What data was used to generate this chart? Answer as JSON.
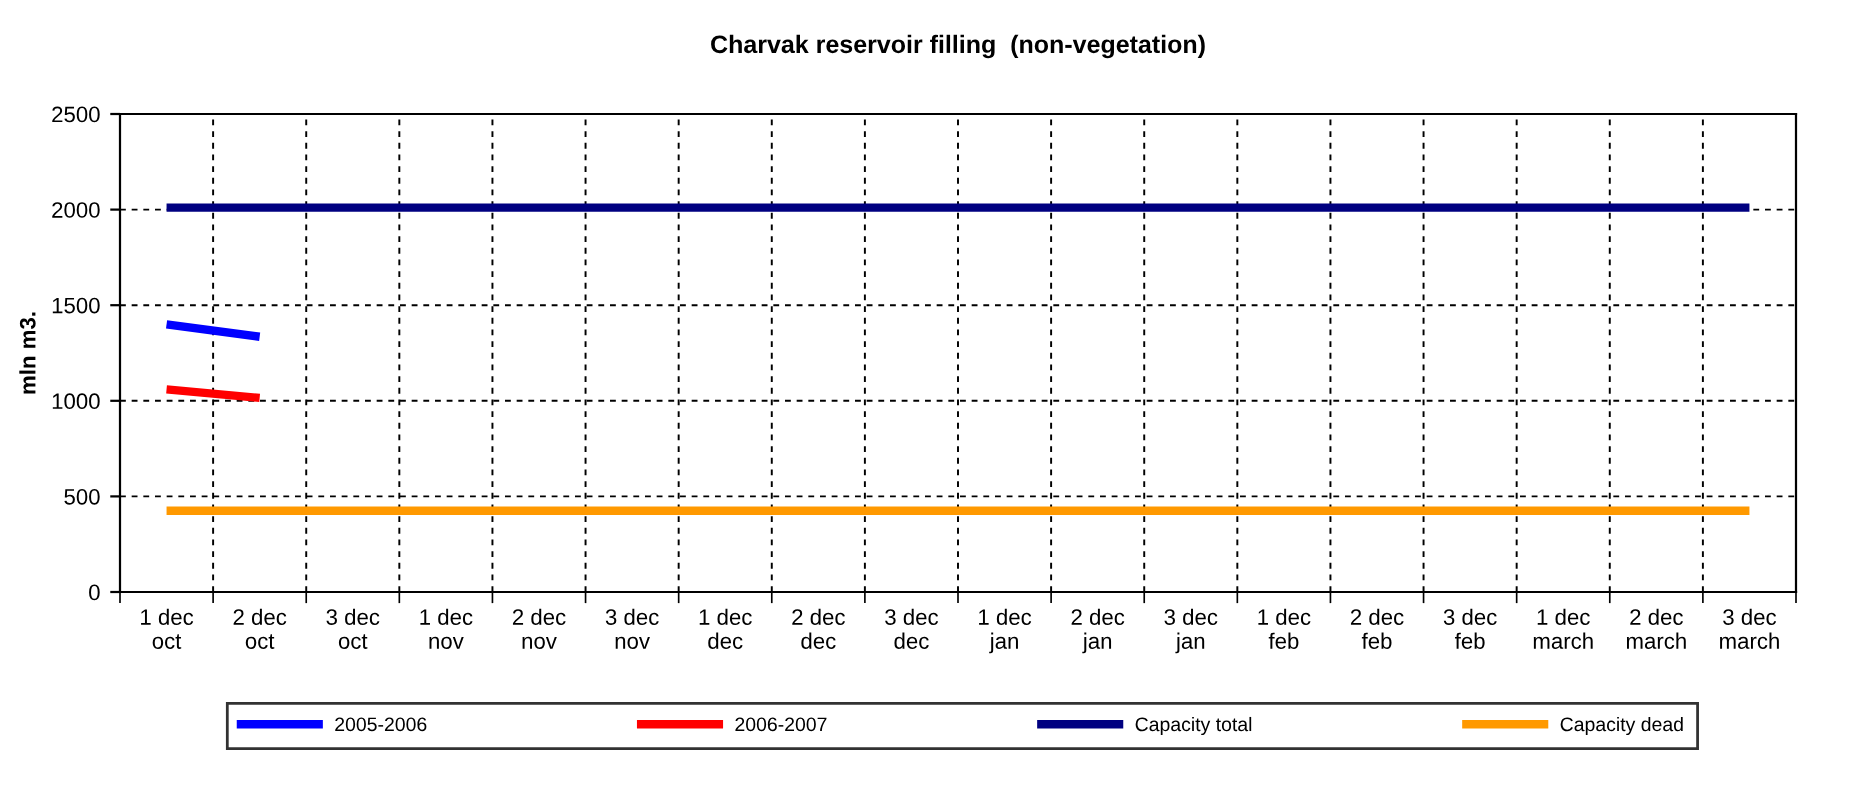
{
  "chart_data": {
    "type": "line",
    "title": "Charvak reservoir filling  (non-vegetation)",
    "ylabel": "mln m3.",
    "categories": [
      "1 dec\noct",
      "2 dec\noct",
      "3 dec\noct",
      "1 dec\nnov",
      "2 dec\nnov",
      "3 dec\nnov",
      "1 dec\ndec",
      "2 dec\ndec",
      "3 dec\ndec",
      "1 dec\njan",
      "2 dec\njan",
      "3 dec\njan",
      "1 dec\nfeb",
      "2 dec\nfeb",
      "3 dec\nfeb",
      "1 dec\nmarch",
      "2 dec\nmarch",
      "3 dec\nmarch"
    ],
    "series": [
      {
        "name": "2005-2006",
        "color": "#0000ff",
        "values": [
          1400,
          1335,
          null,
          null,
          null,
          null,
          null,
          null,
          null,
          null,
          null,
          null,
          null,
          null,
          null,
          null,
          null,
          null
        ]
      },
      {
        "name": "2006-2007",
        "color": "#ff0000",
        "values": [
          1060,
          1015,
          null,
          null,
          null,
          null,
          null,
          null,
          null,
          null,
          null,
          null,
          null,
          null,
          null,
          null,
          null,
          null
        ]
      },
      {
        "name": "Capacity total",
        "color": "#000080",
        "values": [
          2010,
          2010,
          2010,
          2010,
          2010,
          2010,
          2010,
          2010,
          2010,
          2010,
          2010,
          2010,
          2010,
          2010,
          2010,
          2010,
          2010,
          2010
        ]
      },
      {
        "name": "Capacity dead",
        "color": "#ff9900",
        "values": [
          425,
          425,
          425,
          425,
          425,
          425,
          425,
          425,
          425,
          425,
          425,
          425,
          425,
          425,
          425,
          425,
          425,
          425
        ]
      }
    ],
    "ylim": [
      0,
      2500
    ],
    "yticks": [
      0,
      500,
      1000,
      1500,
      2000,
      2500
    ],
    "grid": true,
    "legend": "bottom",
    "marker": "none",
    "line_style": "solid"
  }
}
